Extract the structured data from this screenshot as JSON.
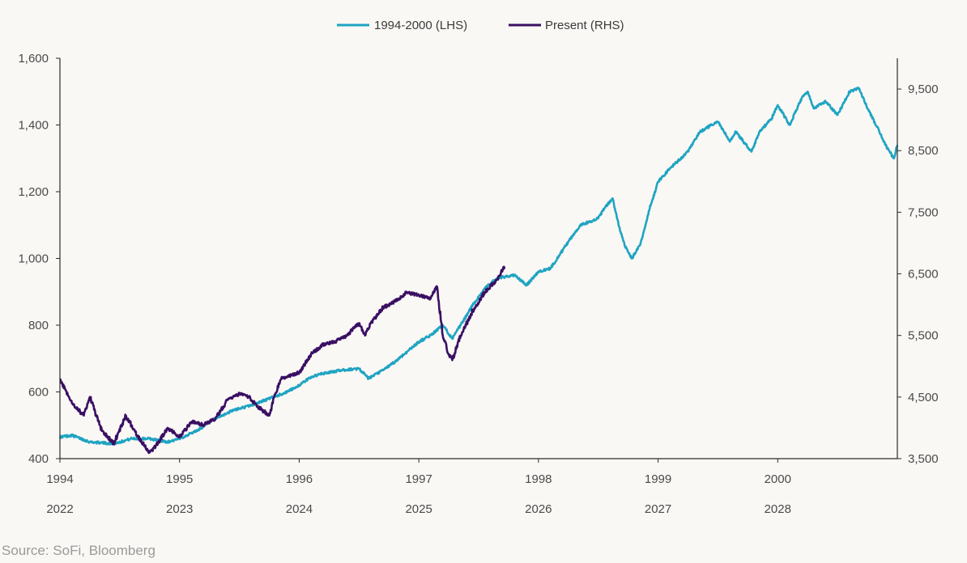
{
  "source_note": "Source: SoFi, Bloomberg",
  "colors": {
    "background": "#faf8f5",
    "axis": "#2b2b2b",
    "text": "#4a4a4a",
    "series_1994_2000": "#1fa4c2",
    "series_present": "#3a0f63"
  },
  "chart_data": {
    "type": "line",
    "title": "",
    "legend": {
      "placement": "top-center",
      "entries": [
        "1994-2000 (LHS)",
        "Present (RHS)"
      ]
    },
    "x_axis_primary": {
      "ticks": [
        "1994",
        "1995",
        "1996",
        "1997",
        "1998",
        "1999",
        "2000"
      ],
      "range": [
        1994,
        2001
      ]
    },
    "x_axis_secondary": {
      "ticks": [
        "2022",
        "2023",
        "2024",
        "2025",
        "2026",
        "2027",
        "2028"
      ],
      "range": [
        2022,
        2029
      ]
    },
    "y_axis_left": {
      "ticks": [
        "400",
        "600",
        "800",
        "1,000",
        "1,200",
        "1,400",
        "1,600"
      ],
      "tick_values": [
        400,
        600,
        800,
        1000,
        1200,
        1400,
        1600
      ],
      "range": [
        400,
        1600
      ]
    },
    "y_axis_right": {
      "ticks": [
        "3,500",
        "4,500",
        "5,500",
        "6,500",
        "7,500",
        "8,500",
        "9,500"
      ],
      "tick_values": [
        3500,
        4500,
        5500,
        6500,
        7500,
        8500,
        9500
      ],
      "range": [
        3500,
        10000
      ]
    },
    "series": [
      {
        "name": "1994-2000 (LHS)",
        "axis": "left",
        "x": [
          1994.0,
          1994.1,
          1994.25,
          1994.45,
          1994.6,
          1994.75,
          1994.9,
          1995.0,
          1995.15,
          1995.3,
          1995.45,
          1995.6,
          1995.75,
          1995.9,
          1996.0,
          1996.1,
          1996.2,
          1996.35,
          1996.5,
          1996.58,
          1996.7,
          1996.8,
          1996.9,
          1997.0,
          1997.1,
          1997.2,
          1997.28,
          1997.35,
          1997.45,
          1997.55,
          1997.65,
          1997.8,
          1997.9,
          1998.0,
          1998.1,
          1998.25,
          1998.35,
          1998.5,
          1998.55,
          1998.62,
          1998.67,
          1998.72,
          1998.78,
          1998.85,
          1998.93,
          1999.0,
          1999.1,
          1999.25,
          1999.35,
          1999.5,
          1999.6,
          1999.65,
          1999.78,
          1999.85,
          1999.95,
          2000.0,
          2000.1,
          2000.2,
          2000.25,
          2000.3,
          2000.4,
          2000.5,
          2000.6,
          2000.68,
          2000.75,
          2000.85,
          2000.9,
          2000.97,
          2001.0
        ],
        "values": [
          465,
          470,
          450,
          445,
          460,
          460,
          450,
          460,
          485,
          520,
          545,
          560,
          580,
          600,
          620,
          645,
          655,
          665,
          670,
          640,
          665,
          690,
          720,
          750,
          770,
          800,
          760,
          800,
          860,
          910,
          940,
          950,
          920,
          960,
          970,
          1050,
          1100,
          1120,
          1150,
          1180,
          1100,
          1040,
          1000,
          1040,
          1150,
          1230,
          1270,
          1320,
          1380,
          1410,
          1350,
          1380,
          1320,
          1380,
          1420,
          1460,
          1400,
          1480,
          1500,
          1450,
          1470,
          1430,
          1500,
          1510,
          1450,
          1380,
          1340,
          1300,
          1340
        ]
      },
      {
        "name": "Present (RHS)",
        "axis": "right",
        "x": [
          2022.0,
          2022.05,
          2022.1,
          2022.2,
          2022.25,
          2022.35,
          2022.45,
          2022.55,
          2022.65,
          2022.75,
          2022.8,
          2022.9,
          2023.0,
          2023.1,
          2023.2,
          2023.3,
          2023.4,
          2023.5,
          2023.58,
          2023.65,
          2023.75,
          2023.8,
          2023.85,
          2024.0,
          2024.1,
          2024.2,
          2024.3,
          2024.4,
          2024.5,
          2024.55,
          2024.6,
          2024.7,
          2024.8,
          2024.9,
          2025.0,
          2025.1,
          2025.15,
          2025.2,
          2025.25,
          2025.28,
          2025.35,
          2025.45,
          2025.55,
          2025.65,
          2025.72
        ],
        "values": [
          4790,
          4600,
          4400,
          4200,
          4500,
          3950,
          3750,
          4200,
          3870,
          3600,
          3700,
          4000,
          3850,
          4100,
          4050,
          4150,
          4450,
          4550,
          4500,
          4350,
          4200,
          4550,
          4800,
          4900,
          5200,
          5350,
          5400,
          5500,
          5700,
          5500,
          5700,
          5950,
          6050,
          6200,
          6150,
          6100,
          6300,
          5500,
          5200,
          5100,
          5500,
          5900,
          6200,
          6400,
          6620
        ]
      }
    ]
  }
}
